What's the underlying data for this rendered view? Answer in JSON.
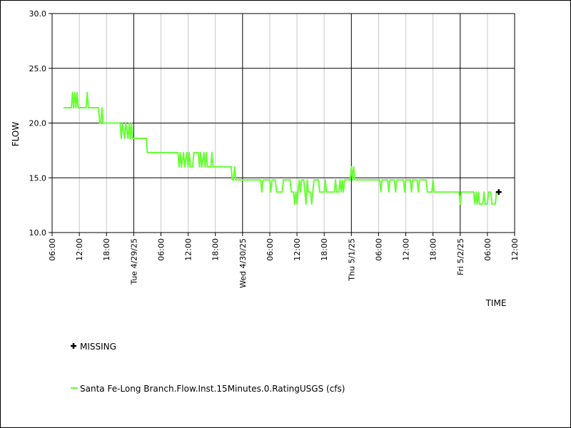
{
  "chart_data": {
    "type": "line",
    "title": "",
    "xlabel": "TIME",
    "ylabel": "FLOW",
    "ylim": [
      10.0,
      30.0
    ],
    "xlim": [
      "2025-04-28T06:00",
      "2025-05-02T12:00"
    ],
    "grid": true,
    "y_ticks": [
      "10.0",
      "15.0",
      "20.0",
      "25.0",
      "30.0"
    ],
    "x_ticks": [
      {
        "time": "2025-04-28T06:00",
        "label": "06:00"
      },
      {
        "time": "2025-04-28T12:00",
        "label": "12:00"
      },
      {
        "time": "2025-04-28T18:00",
        "label": "18:00"
      },
      {
        "time": "2025-04-29T00:00",
        "label": "Tue 4/29/25"
      },
      {
        "time": "2025-04-29T06:00",
        "label": "06:00"
      },
      {
        "time": "2025-04-29T12:00",
        "label": "12:00"
      },
      {
        "time": "2025-04-29T18:00",
        "label": "18:00"
      },
      {
        "time": "2025-04-30T00:00",
        "label": "Wed 4/30/25"
      },
      {
        "time": "2025-04-30T06:00",
        "label": "06:00"
      },
      {
        "time": "2025-04-30T12:00",
        "label": "12:00"
      },
      {
        "time": "2025-04-30T18:00",
        "label": "18:00"
      },
      {
        "time": "2025-05-01T00:00",
        "label": "Thu 5/1/25"
      },
      {
        "time": "2025-05-01T06:00",
        "label": "06:00"
      },
      {
        "time": "2025-05-01T12:00",
        "label": "12:00"
      },
      {
        "time": "2025-05-01T18:00",
        "label": "18:00"
      },
      {
        "time": "2025-05-02T00:00",
        "label": "Fri 5/2/25"
      },
      {
        "time": "2025-05-02T06:00",
        "label": "06:00"
      },
      {
        "time": "2025-05-02T12:00",
        "label": "12:00"
      }
    ],
    "legend": [
      {
        "label": "MISSING",
        "marker": "plus",
        "color": "#000000"
      },
      {
        "label": "Santa Fe-Long Branch.Flow.Inst.15Minutes.0.RatingUSGS (cfs)",
        "marker": "line",
        "color": "#66ff33"
      }
    ],
    "missing_points": [
      {
        "x": "2025-05-02T08:30",
        "y": 13.7
      }
    ],
    "series": [
      {
        "name": "Santa Fe-Long Branch.Flow.Inst.15Minutes.0.RatingUSGS (cfs)",
        "color": "#66ff33",
        "points": [
          [
            "2025-04-28T08:30",
            21.4
          ],
          [
            "2025-04-28T10:15",
            21.4
          ],
          [
            "2025-04-28T10:30",
            22.8
          ],
          [
            "2025-04-28T10:45",
            21.4
          ],
          [
            "2025-04-28T11:00",
            22.8
          ],
          [
            "2025-04-28T11:15",
            21.4
          ],
          [
            "2025-04-28T11:30",
            22.8
          ],
          [
            "2025-04-28T11:45",
            21.4
          ],
          [
            "2025-04-28T13:30",
            21.4
          ],
          [
            "2025-04-28T13:45",
            22.8
          ],
          [
            "2025-04-28T14:00",
            21.4
          ],
          [
            "2025-04-28T16:15",
            21.4
          ],
          [
            "2025-04-28T16:30",
            20.0
          ],
          [
            "2025-04-28T16:45",
            20.0
          ],
          [
            "2025-04-28T17:00",
            21.4
          ],
          [
            "2025-04-28T17:15",
            20.0
          ],
          [
            "2025-04-28T21:00",
            20.0
          ],
          [
            "2025-04-28T21:15",
            18.6
          ],
          [
            "2025-04-28T21:30",
            20.0
          ],
          [
            "2025-04-28T22:00",
            18.6
          ],
          [
            "2025-04-28T22:15",
            20.0
          ],
          [
            "2025-04-28T22:45",
            18.6
          ],
          [
            "2025-04-28T23:00",
            20.0
          ],
          [
            "2025-04-28T23:15",
            18.6
          ],
          [
            "2025-04-28T23:30",
            20.0
          ],
          [
            "2025-04-28T23:45",
            18.6
          ],
          [
            "2025-04-29T02:45",
            18.6
          ],
          [
            "2025-04-29T03:00",
            17.3
          ],
          [
            "2025-04-29T09:45",
            17.3
          ],
          [
            "2025-04-29T10:00",
            16.0
          ],
          [
            "2025-04-29T10:15",
            17.3
          ],
          [
            "2025-04-29T10:30",
            16.0
          ],
          [
            "2025-04-29T11:00",
            17.3
          ],
          [
            "2025-04-29T11:15",
            16.0
          ],
          [
            "2025-04-29T11:45",
            17.3
          ],
          [
            "2025-04-29T12:00",
            16.0
          ],
          [
            "2025-04-29T12:15",
            17.3
          ],
          [
            "2025-04-29T12:30",
            16.0
          ],
          [
            "2025-04-29T13:00",
            16.0
          ],
          [
            "2025-04-29T13:15",
            17.3
          ],
          [
            "2025-04-29T14:15",
            17.3
          ],
          [
            "2025-04-29T14:30",
            16.0
          ],
          [
            "2025-04-29T14:45",
            17.3
          ],
          [
            "2025-04-29T15:00",
            16.0
          ],
          [
            "2025-04-29T15:30",
            17.3
          ],
          [
            "2025-04-29T15:45",
            16.0
          ],
          [
            "2025-04-29T16:00",
            17.3
          ],
          [
            "2025-04-29T16:15",
            16.0
          ],
          [
            "2025-04-29T17:00",
            16.0
          ],
          [
            "2025-04-29T17:15",
            17.3
          ],
          [
            "2025-04-29T17:30",
            16.0
          ],
          [
            "2025-04-29T21:30",
            16.0
          ],
          [
            "2025-04-29T21:45",
            14.8
          ],
          [
            "2025-04-29T22:00",
            14.8
          ],
          [
            "2025-04-29T22:15",
            16.0
          ],
          [
            "2025-04-29T22:30",
            14.8
          ],
          [
            "2025-04-30T04:00",
            14.8
          ],
          [
            "2025-04-30T04:15",
            13.7
          ],
          [
            "2025-04-30T04:30",
            14.8
          ],
          [
            "2025-04-30T06:00",
            14.8
          ],
          [
            "2025-04-30T06:15",
            13.7
          ],
          [
            "2025-04-30T06:30",
            14.8
          ],
          [
            "2025-04-30T07:15",
            14.8
          ],
          [
            "2025-04-30T07:30",
            13.7
          ],
          [
            "2025-04-30T08:45",
            13.7
          ],
          [
            "2025-04-30T09:00",
            14.8
          ],
          [
            "2025-04-30T10:30",
            14.8
          ],
          [
            "2025-04-30T10:45",
            13.7
          ],
          [
            "2025-04-30T11:15",
            13.7
          ],
          [
            "2025-04-30T11:30",
            12.6
          ],
          [
            "2025-04-30T11:45",
            13.7
          ],
          [
            "2025-04-30T12:00",
            12.6
          ],
          [
            "2025-04-30T12:15",
            13.7
          ],
          [
            "2025-04-30T12:30",
            14.8
          ],
          [
            "2025-04-30T12:45",
            13.7
          ],
          [
            "2025-04-30T13:00",
            14.8
          ],
          [
            "2025-04-30T13:30",
            14.8
          ],
          [
            "2025-04-30T13:45",
            13.7
          ],
          [
            "2025-04-30T14:00",
            12.6
          ],
          [
            "2025-04-30T14:15",
            14.8
          ],
          [
            "2025-04-30T14:30",
            13.7
          ],
          [
            "2025-04-30T15:00",
            13.7
          ],
          [
            "2025-04-30T15:15",
            12.6
          ],
          [
            "2025-04-30T15:30",
            13.7
          ],
          [
            "2025-04-30T15:45",
            14.8
          ],
          [
            "2025-04-30T16:45",
            14.8
          ],
          [
            "2025-04-30T17:00",
            13.7
          ],
          [
            "2025-04-30T18:00",
            13.7
          ],
          [
            "2025-04-30T18:15",
            14.8
          ],
          [
            "2025-04-30T18:30",
            13.7
          ],
          [
            "2025-04-30T20:15",
            13.7
          ],
          [
            "2025-04-30T20:30",
            14.8
          ],
          [
            "2025-04-30T20:45",
            13.7
          ],
          [
            "2025-04-30T21:15",
            13.7
          ],
          [
            "2025-04-30T21:30",
            14.8
          ],
          [
            "2025-04-30T21:45",
            13.7
          ],
          [
            "2025-04-30T22:00",
            14.8
          ],
          [
            "2025-04-30T22:15",
            13.7
          ],
          [
            "2025-04-30T22:30",
            14.8
          ],
          [
            "2025-04-30T23:45",
            14.8
          ],
          [
            "2025-05-01T00:00",
            16.0
          ],
          [
            "2025-05-01T00:15",
            14.8
          ],
          [
            "2025-05-01T00:30",
            16.0
          ],
          [
            "2025-05-01T00:45",
            14.8
          ],
          [
            "2025-05-01T06:15",
            14.8
          ],
          [
            "2025-05-01T06:30",
            13.7
          ],
          [
            "2025-05-01T06:45",
            14.8
          ],
          [
            "2025-05-01T08:00",
            14.8
          ],
          [
            "2025-05-01T08:15",
            13.7
          ],
          [
            "2025-05-01T08:30",
            14.8
          ],
          [
            "2025-05-01T09:30",
            14.8
          ],
          [
            "2025-05-01T09:45",
            13.7
          ],
          [
            "2025-05-01T10:00",
            14.8
          ],
          [
            "2025-05-01T11:30",
            14.8
          ],
          [
            "2025-05-01T11:45",
            13.7
          ],
          [
            "2025-05-01T12:00",
            14.8
          ],
          [
            "2025-05-01T13:00",
            14.8
          ],
          [
            "2025-05-01T13:15",
            13.7
          ],
          [
            "2025-05-01T13:30",
            14.8
          ],
          [
            "2025-05-01T14:30",
            14.8
          ],
          [
            "2025-05-01T14:45",
            13.7
          ],
          [
            "2025-05-01T15:00",
            14.8
          ],
          [
            "2025-05-01T16:30",
            14.8
          ],
          [
            "2025-05-01T16:45",
            13.7
          ],
          [
            "2025-05-01T17:45",
            13.7
          ],
          [
            "2025-05-01T18:00",
            14.8
          ],
          [
            "2025-05-01T18:15",
            13.7
          ],
          [
            "2025-05-01T23:45",
            13.7
          ],
          [
            "2025-05-02T00:00",
            12.6
          ],
          [
            "2025-05-02T00:15",
            13.7
          ],
          [
            "2025-05-02T03:00",
            13.7
          ],
          [
            "2025-05-02T03:15",
            12.6
          ],
          [
            "2025-05-02T03:30",
            13.7
          ],
          [
            "2025-05-02T03:45",
            12.6
          ],
          [
            "2025-05-02T04:00",
            13.7
          ],
          [
            "2025-05-02T04:15",
            12.6
          ],
          [
            "2025-05-02T05:00",
            12.6
          ],
          [
            "2025-05-02T05:15",
            13.7
          ],
          [
            "2025-05-02T05:30",
            12.6
          ],
          [
            "2025-05-02T06:00",
            12.6
          ],
          [
            "2025-05-02T06:15",
            13.7
          ],
          [
            "2025-05-02T06:45",
            13.7
          ],
          [
            "2025-05-02T07:00",
            12.6
          ],
          [
            "2025-05-02T07:45",
            12.6
          ],
          [
            "2025-05-02T08:00",
            13.7
          ]
        ]
      }
    ]
  }
}
